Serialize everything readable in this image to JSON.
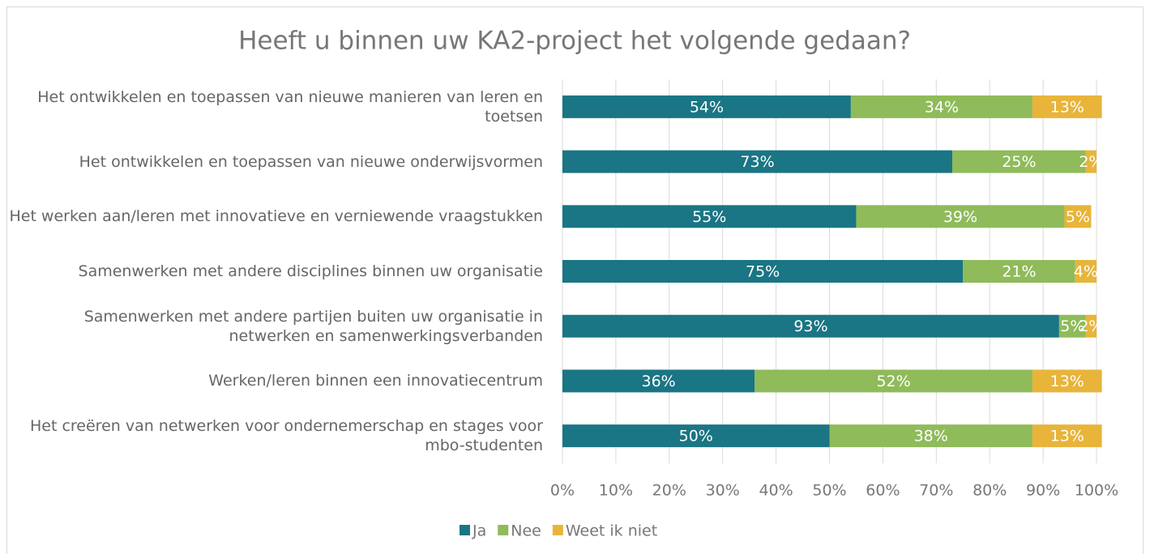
{
  "chart_data": {
    "type": "stacked_barh",
    "title": "Heeft u binnen uw KA2-project het volgende gedaan?",
    "categories": [
      "Het ontwikkelen en toepassen van nieuwe manieren van leren en toetsen",
      "Het ontwikkelen en toepassen van nieuwe onderwijsvormen",
      "Het werken aan/leren met innovatieve en verniewende vraagstukken",
      "Samenwerken met andere disciplines binnen uw organisatie",
      "Samenwerken met andere partijen buiten uw organisatie in netwerken en samenwerkingsverbanden",
      "Werken/leren binnen een innovatiecentrum",
      "Het creëren van netwerken voor ondernemerschap en stages voor mbo-studenten"
    ],
    "series": [
      {
        "name": "Ja",
        "color": "#1a7584",
        "values": [
          54,
          73,
          55,
          75,
          93,
          36,
          50
        ],
        "value_labels": [
          "54%",
          "73%",
          "55%",
          "75%",
          "93%",
          "36%",
          "50%"
        ]
      },
      {
        "name": "Nee",
        "color": "#8fbb5a",
        "values": [
          34,
          25,
          39,
          21,
          5,
          52,
          38
        ],
        "value_labels": [
          "34%",
          "25%",
          "39%",
          "21%",
          "5%",
          "52%",
          "38%"
        ]
      },
      {
        "name": "Weet ik niet",
        "color": "#e8b43a",
        "values": [
          13,
          2,
          5,
          4,
          2,
          13,
          13
        ],
        "value_labels": [
          "13%",
          "2%",
          "5%",
          "4%",
          "2%",
          "13%",
          "13%"
        ]
      }
    ],
    "xlim": [
      0,
      100
    ],
    "xticks": [
      {
        "value": 0,
        "label": "0%"
      },
      {
        "value": 10,
        "label": "10%"
      },
      {
        "value": 20,
        "label": "20%"
      },
      {
        "value": 30,
        "label": "30%"
      },
      {
        "value": 40,
        "label": "40%"
      },
      {
        "value": 50,
        "label": "50%"
      },
      {
        "value": 60,
        "label": "60%"
      },
      {
        "value": 70,
        "label": "70%"
      },
      {
        "value": 80,
        "label": "80%"
      },
      {
        "value": 90,
        "label": "90%"
      },
      {
        "value": 100,
        "label": "100%"
      }
    ],
    "grid": true,
    "legend": "bottom"
  }
}
